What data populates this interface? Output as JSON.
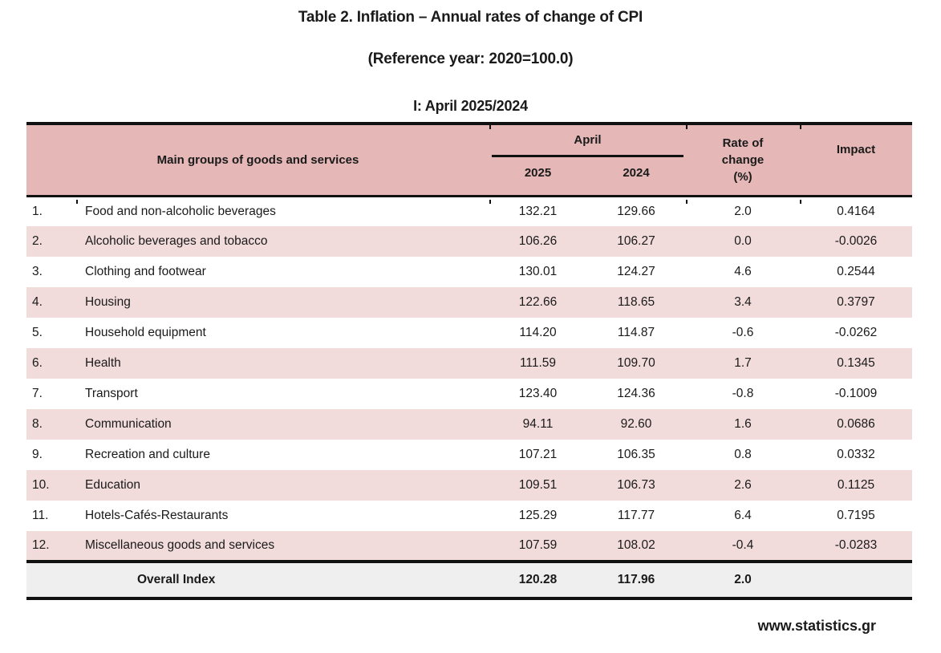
{
  "titles": {
    "main": "Table 2. Inflation – Annual rates of change of CPI",
    "reference": "(Reference year: 2020=100.0)",
    "period": "I: April 2025/2024"
  },
  "table": {
    "header": {
      "main_groups": "Main groups of goods and services",
      "month_group": "April",
      "year_left": "2025",
      "year_right": "2024",
      "rate_label": "Rate of\nchange\n(%)",
      "impact": "Impact"
    },
    "rows": [
      {
        "no": "1.",
        "name": "Food and non-alcoholic beverages",
        "v2025": "132.21",
        "v2024": "129.66",
        "rate": "2.0",
        "impact": "0.4164"
      },
      {
        "no": "2.",
        "name": "Alcoholic beverages and tobacco",
        "v2025": "106.26",
        "v2024": "106.27",
        "rate": "0.0",
        "impact": "-0.0026"
      },
      {
        "no": "3.",
        "name": "Clothing and footwear",
        "v2025": "130.01",
        "v2024": "124.27",
        "rate": "4.6",
        "impact": "0.2544"
      },
      {
        "no": "4.",
        "name": "Housing",
        "v2025": "122.66",
        "v2024": "118.65",
        "rate": "3.4",
        "impact": "0.3797"
      },
      {
        "no": "5.",
        "name": "Household equipment",
        "v2025": "114.20",
        "v2024": "114.87",
        "rate": "-0.6",
        "impact": "-0.0262"
      },
      {
        "no": "6.",
        "name": "Health",
        "v2025": "111.59",
        "v2024": "109.70",
        "rate": "1.7",
        "impact": "0.1345"
      },
      {
        "no": "7.",
        "name": "Transport",
        "v2025": "123.40",
        "v2024": "124.36",
        "rate": "-0.8",
        "impact": "-0.1009"
      },
      {
        "no": "8.",
        "name": "Communication",
        "v2025": "94.11",
        "v2024": "92.60",
        "rate": "1.6",
        "impact": "0.0686"
      },
      {
        "no": "9.",
        "name": "Recreation and culture",
        "v2025": "107.21",
        "v2024": "106.35",
        "rate": "0.8",
        "impact": "0.0332"
      },
      {
        "no": "10.",
        "name": "Education",
        "v2025": "109.51",
        "v2024": "106.73",
        "rate": "2.6",
        "impact": "0.1125"
      },
      {
        "no": "11.",
        "name": "Hotels-Cafés-Restaurants",
        "v2025": "125.29",
        "v2024": "117.77",
        "rate": "6.4",
        "impact": "0.7195"
      },
      {
        "no": "12.",
        "name": "Miscellaneous goods and services",
        "v2025": "107.59",
        "v2024": "108.02",
        "rate": "-0.4",
        "impact": "-0.0283"
      }
    ],
    "overall": {
      "label": "Overall Index",
      "v2025": "120.28",
      "v2024": "117.96",
      "rate": "2.0",
      "impact": ""
    }
  },
  "footer": {
    "website": "www.statistics.gr"
  },
  "colors": {
    "header_bg": "#e5b8b7",
    "row_alt_bg": "#f2dcdb",
    "overall_bg": "#f0efef",
    "border": "#111111"
  }
}
